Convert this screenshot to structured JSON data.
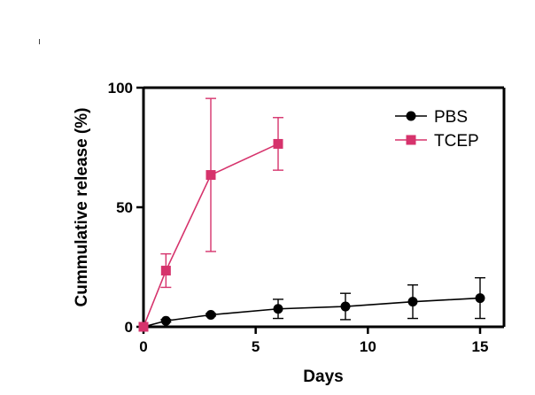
{
  "chart_data": {
    "type": "line",
    "title": "",
    "xlabel": "Days",
    "ylabel": "Cummulative release (%)",
    "xlim": [
      0,
      15
    ],
    "ylim": [
      0,
      100
    ],
    "x_ticks": [
      "0",
      "5",
      "10",
      "15"
    ],
    "y_ticks": [
      "0",
      "50",
      "100"
    ],
    "grid": false,
    "legend_position": "top-right",
    "series": [
      {
        "name": "PBS",
        "color": "#000000",
        "marker": "circle",
        "x": [
          0,
          1,
          3,
          6,
          9,
          12,
          15
        ],
        "y": [
          0,
          2.5,
          5,
          7.5,
          8.5,
          10.5,
          12
        ],
        "error": [
          0,
          0.5,
          0.5,
          4,
          5.5,
          7,
          8.5
        ]
      },
      {
        "name": "TCEP",
        "color": "#d6336c",
        "marker": "square",
        "x": [
          0,
          1,
          3,
          6
        ],
        "y": [
          0,
          23.5,
          63.5,
          76.5
        ],
        "error": [
          0,
          7,
          32,
          11
        ]
      }
    ]
  }
}
